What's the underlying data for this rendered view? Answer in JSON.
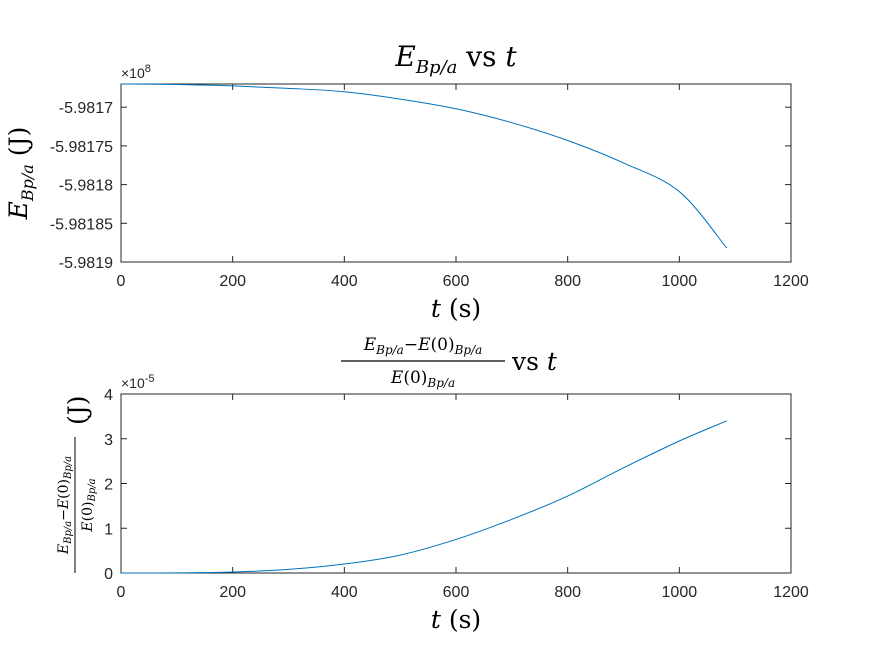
{
  "chart_data": [
    {
      "type": "line",
      "title": "E_{Bp/a} vs t",
      "xlabel": "t (s)",
      "ylabel": "E_{Bp/a} (J)",
      "exponent_label": "×10^8",
      "xlim": [
        0,
        1200
      ],
      "ylim": [
        -598190000,
        -598167000
      ],
      "xticks": [
        0,
        200,
        400,
        600,
        800,
        1000,
        1200
      ],
      "xtick_labels": [
        "0",
        "200",
        "400",
        "600",
        "800",
        "1000",
        "1200"
      ],
      "yticks": [
        -598190000,
        -598185000,
        -598180000,
        -598175000,
        -598170000
      ],
      "ytick_labels": [
        "-5.9819",
        "-5.98185",
        "-5.9818",
        "-5.98175",
        "-5.9817"
      ],
      "grid": false,
      "color": "#0072BD",
      "series": [
        {
          "x": [
            0,
            100,
            200,
            300,
            400,
            500,
            600,
            700,
            800,
            900,
            1000,
            1085
          ],
          "y": [
            -598167000,
            -598167060,
            -598167250,
            -598167560,
            -598168000,
            -598168950,
            -598170200,
            -598172000,
            -598174300,
            -598177200,
            -598180900,
            -598188200
          ]
        }
      ]
    },
    {
      "type": "line",
      "title": "(E_{Bp/a} − E(0)_{Bp/a}) / E(0)_{Bp/a} vs t",
      "xlabel": "t (s)",
      "ylabel": "(E_{Bp/a} − E(0)_{Bp/a}) / E(0)_{Bp/a} (J)",
      "exponent_label": "×10^-5",
      "xlim": [
        0,
        1200
      ],
      "ylim": [
        0,
        4
      ],
      "xticks": [
        0,
        200,
        400,
        600,
        800,
        1000,
        1200
      ],
      "xtick_labels": [
        "0",
        "200",
        "400",
        "600",
        "800",
        "1000",
        "1200"
      ],
      "yticks": [
        0,
        1,
        2,
        3,
        4
      ],
      "ytick_labels": [
        "0",
        "1",
        "2",
        "3",
        "4"
      ],
      "grid": false,
      "color": "#0072BD",
      "series": [
        {
          "x": [
            0,
            100,
            200,
            300,
            400,
            500,
            600,
            700,
            800,
            900,
            1000,
            1085
          ],
          "y": [
            0,
            0.003,
            0.022,
            0.08,
            0.2,
            0.4,
            0.75,
            1.2,
            1.72,
            2.35,
            2.95,
            3.4
          ]
        }
      ]
    }
  ]
}
